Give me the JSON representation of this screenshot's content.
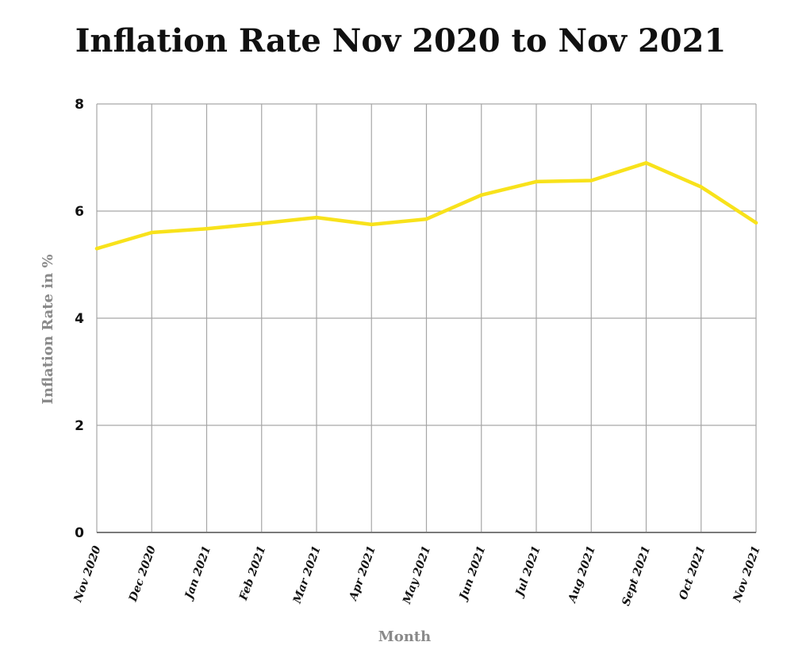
{
  "chart_data": {
    "type": "line",
    "title": "Inflation Rate Nov 2020 to Nov 2021",
    "xlabel": "Month",
    "ylabel": "Inflation Rate in %",
    "categories": [
      "Nov 2020",
      "Dec 2020",
      "Jan 2021",
      "Feb 2021",
      "Mar 2021",
      "Apr 2021",
      "May 2021",
      "Jun 2021",
      "Jul 2021",
      "Aug 2021",
      "Sept 2021",
      "Oct 2021",
      "Nov 2021"
    ],
    "series": [
      {
        "values": [
          5.3,
          5.6,
          5.67,
          5.77,
          5.88,
          5.75,
          5.85,
          6.3,
          6.55,
          6.57,
          6.9,
          6.45,
          5.78
        ],
        "color": "#f8e21b"
      }
    ],
    "ylim": [
      0,
      8
    ],
    "yticks": [
      0,
      2,
      4,
      6,
      8
    ],
    "grid": true,
    "legend": "none"
  }
}
